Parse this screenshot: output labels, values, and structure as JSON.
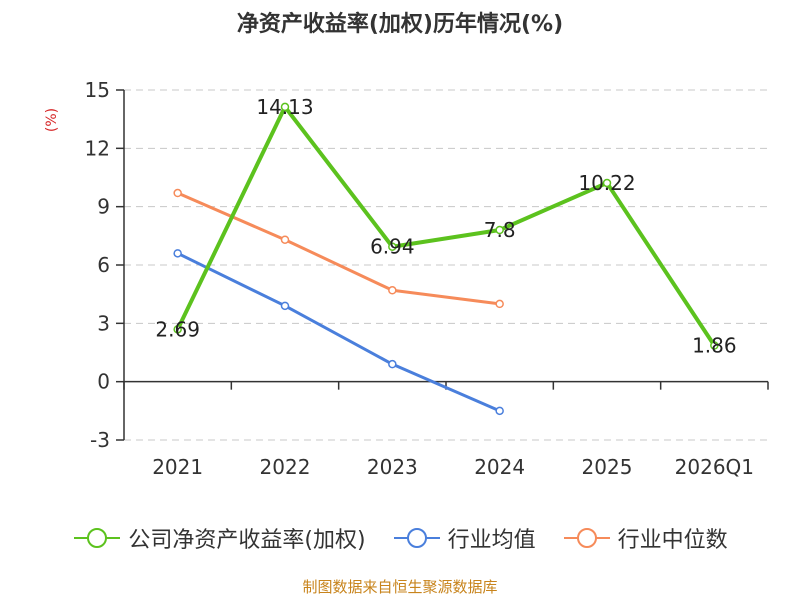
{
  "chart_data": {
    "type": "line",
    "title": "净资产收益率(加权)历年情况(%)",
    "ylabel": "(%)",
    "xlabel": "",
    "categories": [
      "2021",
      "2022",
      "2023",
      "2024",
      "2025",
      "2026Q1"
    ],
    "ylim": [
      -3,
      15
    ],
    "yticks": [
      -3,
      0,
      3,
      6,
      9,
      12,
      15
    ],
    "grid": true,
    "legend_position": "bottom",
    "series": [
      {
        "name": "公司净资产收益率(加权)",
        "color": "#5cc21e",
        "values": [
          2.69,
          14.13,
          6.94,
          7.8,
          10.22,
          1.86
        ],
        "labels": [
          "2.69",
          "14.13",
          "6.94",
          "7.8",
          "10.22",
          "1.86"
        ]
      },
      {
        "name": "行业均值",
        "color": "#4a7fdc",
        "values": [
          6.6,
          3.9,
          0.9,
          -1.5,
          null,
          null
        ]
      },
      {
        "name": "行业中位数",
        "color": "#f68b5a",
        "values": [
          9.7,
          7.3,
          4.7,
          4.0,
          null,
          null
        ]
      }
    ]
  },
  "source": "制图数据来自恒生聚源数据库"
}
